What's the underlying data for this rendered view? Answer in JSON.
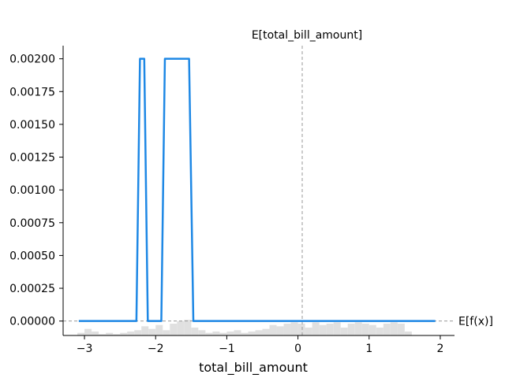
{
  "chart_data": {
    "type": "line",
    "xlabel": "total_bill_amount",
    "ylabel": "",
    "xlim": [
      -3.3,
      2.2
    ],
    "ylim": [
      -0.00011,
      0.0021
    ],
    "x_ticks": [
      -3,
      -2,
      -1,
      0,
      1,
      2
    ],
    "x_tick_labels": [
      "−3",
      "−2",
      "−1",
      "0",
      "1",
      "2"
    ],
    "y_ticks": [
      0.0,
      0.00025,
      0.0005,
      0.00075,
      0.001,
      0.00125,
      0.0015,
      0.00175,
      0.002
    ],
    "y_tick_labels": [
      "0.00000",
      "0.00025",
      "0.00050",
      "0.00075",
      "0.00100",
      "0.00125",
      "0.00150",
      "0.00175",
      "0.00200"
    ],
    "grid": false,
    "series": [
      {
        "x": [
          -3.08,
          -2.27,
          -2.22,
          -2.16,
          -2.11,
          -1.92,
          -1.87,
          -1.53,
          -1.47,
          1.93
        ],
        "y": [
          0,
          0,
          0.002,
          0.002,
          0,
          0,
          0.002,
          0.002,
          0,
          0
        ],
        "color": "#1e88e5"
      }
    ],
    "vline": {
      "x": 0.06,
      "label": "E[total_bill_amount]",
      "color": "#999999"
    },
    "hline": {
      "y": 0,
      "label": "E[f(x)]",
      "color": "#999999"
    },
    "histogram": {
      "color": "#e0e0e0",
      "bin_edges": [
        -3.1,
        -3.0,
        -2.9,
        -2.8,
        -2.7,
        -2.6,
        -2.5,
        -2.4,
        -2.3,
        -2.2,
        -2.1,
        -2.0,
        -1.9,
        -1.8,
        -1.7,
        -1.6,
        -1.5,
        -1.4,
        -1.3,
        -1.2,
        -1.1,
        -1.0,
        -0.9,
        -0.8,
        -0.7,
        -0.6,
        -0.5,
        -0.4,
        -0.3,
        -0.2,
        -0.1,
        0.0,
        0.1,
        0.2,
        0.3,
        0.4,
        0.5,
        0.6,
        0.7,
        0.8,
        0.9,
        1.0,
        1.1,
        1.2,
        1.3,
        1.4,
        1.5,
        1.6
      ],
      "heights": [
        2e-05,
        5e-05,
        3e-05,
        1e-05,
        2e-05,
        1e-05,
        2e-05,
        3e-05,
        4e-05,
        7e-05,
        5e-05,
        8e-05,
        4e-05,
        9e-05,
        0.00011,
        0.00012,
        6e-05,
        4e-05,
        2e-05,
        3e-05,
        2e-05,
        3e-05,
        4e-05,
        2e-05,
        3e-05,
        4e-05,
        5e-05,
        8e-05,
        7e-05,
        9e-05,
        0.0001,
        9e-05,
        6e-05,
        0.0001,
        8e-05,
        9e-05,
        0.0001,
        6e-05,
        9e-05,
        0.0001,
        9e-05,
        8e-05,
        6e-05,
        9e-05,
        0.0001,
        9e-05,
        3e-05
      ]
    }
  }
}
